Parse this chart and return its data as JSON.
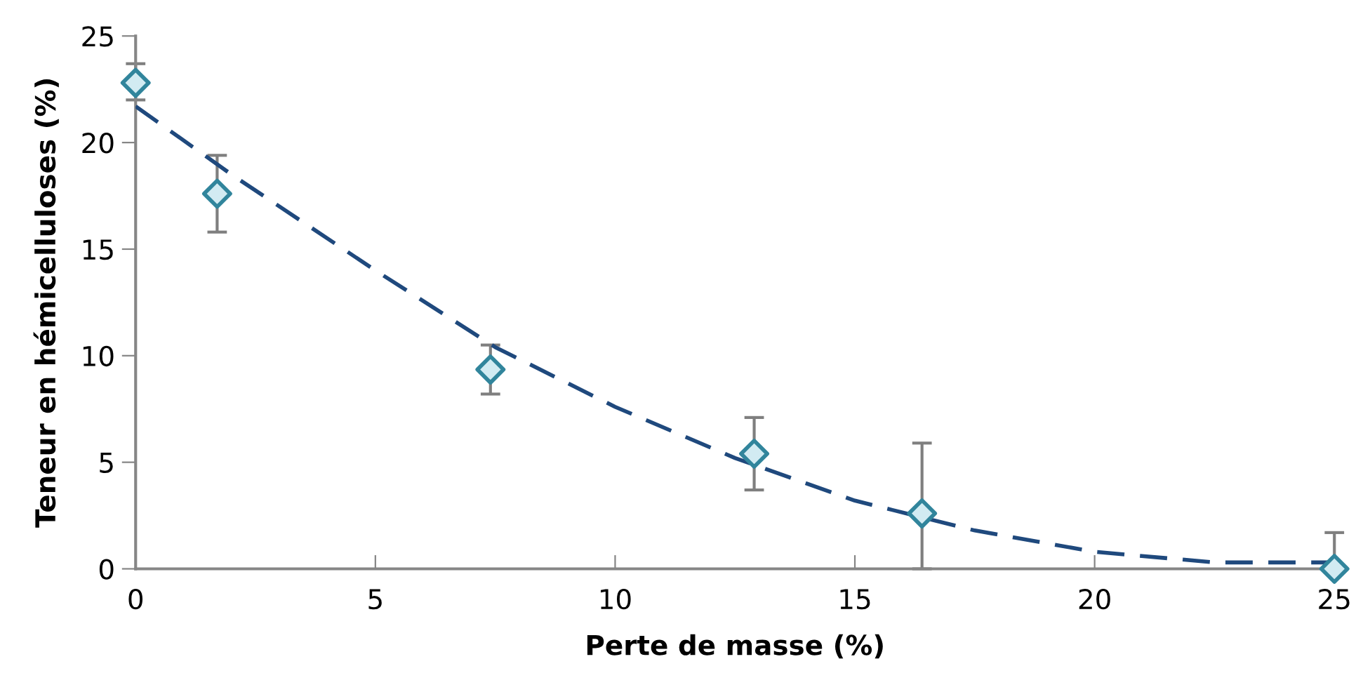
{
  "chart_data": {
    "type": "scatter",
    "xlabel": "Perte de masse (%)",
    "ylabel": "Teneur en hémicelluloses (%)",
    "xlim": [
      0,
      25
    ],
    "ylim": [
      0,
      25
    ],
    "xticks": [
      0,
      5,
      10,
      15,
      20,
      25
    ],
    "yticks": [
      0,
      5,
      10,
      15,
      20,
      25
    ],
    "grid": false,
    "legend": false,
    "series": [
      {
        "color": "#31859c",
        "marker": "diamond",
        "x": [
          0,
          1.7,
          7.4,
          12.9,
          16.4,
          25
        ],
        "values": [
          22.8,
          17.6,
          9.35,
          5.4,
          2.6,
          0
        ],
        "errors": [
          [
            22.0,
            23.7
          ],
          [
            15.8,
            19.4
          ],
          [
            8.2,
            10.5
          ],
          [
            3.7,
            7.1
          ],
          [
            0,
            5.9
          ],
          [
            0,
            1.7
          ]
        ]
      },
      {
        "type": "line",
        "color": "#1f497d",
        "line_style": "dashed",
        "marker": "none",
        "x": [
          0,
          2,
          5,
          7.5,
          10,
          12.5,
          15,
          17.5,
          20,
          22.5,
          25
        ],
        "values": [
          21.7,
          18.5,
          14.0,
          10.4,
          7.6,
          5.2,
          3.2,
          1.8,
          0.8,
          0.3,
          0.3
        ]
      }
    ]
  }
}
